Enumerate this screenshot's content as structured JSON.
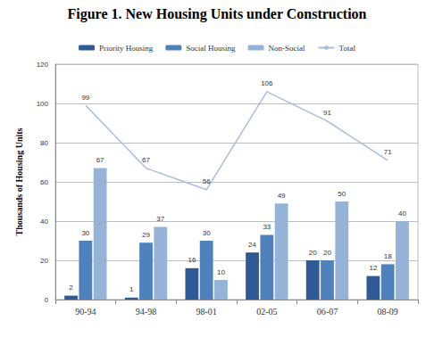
{
  "chart_data": {
    "type": "bar",
    "title": "Figure 1. New Housing Units under Construction",
    "y_label": "Thousands of Housing Units",
    "categories": [
      "90-94",
      "94-98",
      "98-01",
      "02-05",
      "06-07",
      "08-09"
    ],
    "series": [
      {
        "name": "Priority Housing",
        "type": "bar",
        "color": "#2f5a96",
        "values": [
          2,
          1,
          16,
          24,
          20,
          12
        ]
      },
      {
        "name": "Social Housing",
        "type": "bar",
        "color": "#4f81bd",
        "values": [
          30,
          29,
          30,
          33,
          20,
          18
        ]
      },
      {
        "name": "Non-Social",
        "type": "bar",
        "color": "#95b3d7",
        "values": [
          67,
          37,
          10,
          49,
          50,
          40
        ]
      },
      {
        "name": "Total",
        "type": "line",
        "color": "#a9bcdb",
        "values": [
          99,
          67,
          56,
          106,
          91,
          71
        ]
      }
    ],
    "ylim": [
      0,
      120
    ],
    "yticks": [
      0,
      20,
      40,
      60,
      80,
      100,
      120
    ],
    "grid": true,
    "legend": "top",
    "data_labels": true
  }
}
